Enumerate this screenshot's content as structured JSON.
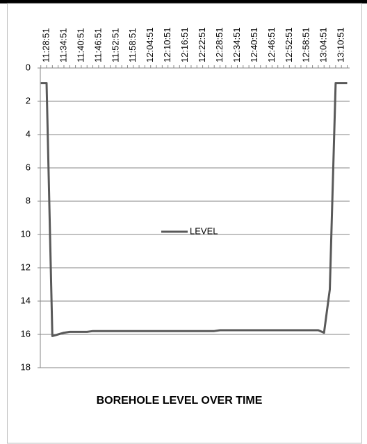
{
  "chart_data": {
    "type": "line",
    "title": "BOREHOLE LEVEL OVER TIME",
    "categories": [
      null,
      "11:28:51",
      null,
      null,
      "11:34:51",
      null,
      null,
      "11:40:51",
      null,
      null,
      "11:46:51",
      null,
      null,
      "11:52:51",
      null,
      null,
      "11:58:51",
      null,
      null,
      "12:04:51",
      null,
      null,
      "12:10:51",
      null,
      null,
      "12:16:51",
      null,
      null,
      "12:22:51",
      null,
      null,
      "12:28:51",
      null,
      null,
      "12:34:51",
      null,
      null,
      "12:40:51",
      null,
      null,
      "12:46:51",
      null,
      null,
      "12:52:51",
      null,
      null,
      "12:58:51",
      null,
      null,
      "13:04:51",
      null,
      null,
      "13:10:51",
      null
    ],
    "series": [
      {
        "name": "LEVEL",
        "color": "#595959",
        "values": [
          0.9,
          0.9,
          16.1,
          16,
          15.9,
          15.85,
          15.85,
          15.85,
          15.85,
          15.8,
          15.8,
          15.8,
          15.8,
          15.8,
          15.8,
          15.8,
          15.8,
          15.8,
          15.8,
          15.8,
          15.8,
          15.8,
          15.8,
          15.8,
          15.8,
          15.8,
          15.8,
          15.8,
          15.8,
          15.8,
          15.8,
          15.75,
          15.75,
          15.75,
          15.75,
          15.75,
          15.75,
          15.75,
          15.75,
          15.75,
          15.75,
          15.75,
          15.75,
          15.75,
          15.75,
          15.75,
          15.75,
          15.75,
          15.75,
          15.9,
          13.3,
          0.9,
          0.9,
          0.9
        ]
      }
    ],
    "ylim": [
      0,
      18
    ],
    "yticks": [
      0,
      2,
      4,
      6,
      8,
      10,
      12,
      14,
      16,
      18
    ],
    "y_reversed": true,
    "grid": true,
    "legend": "center"
  }
}
